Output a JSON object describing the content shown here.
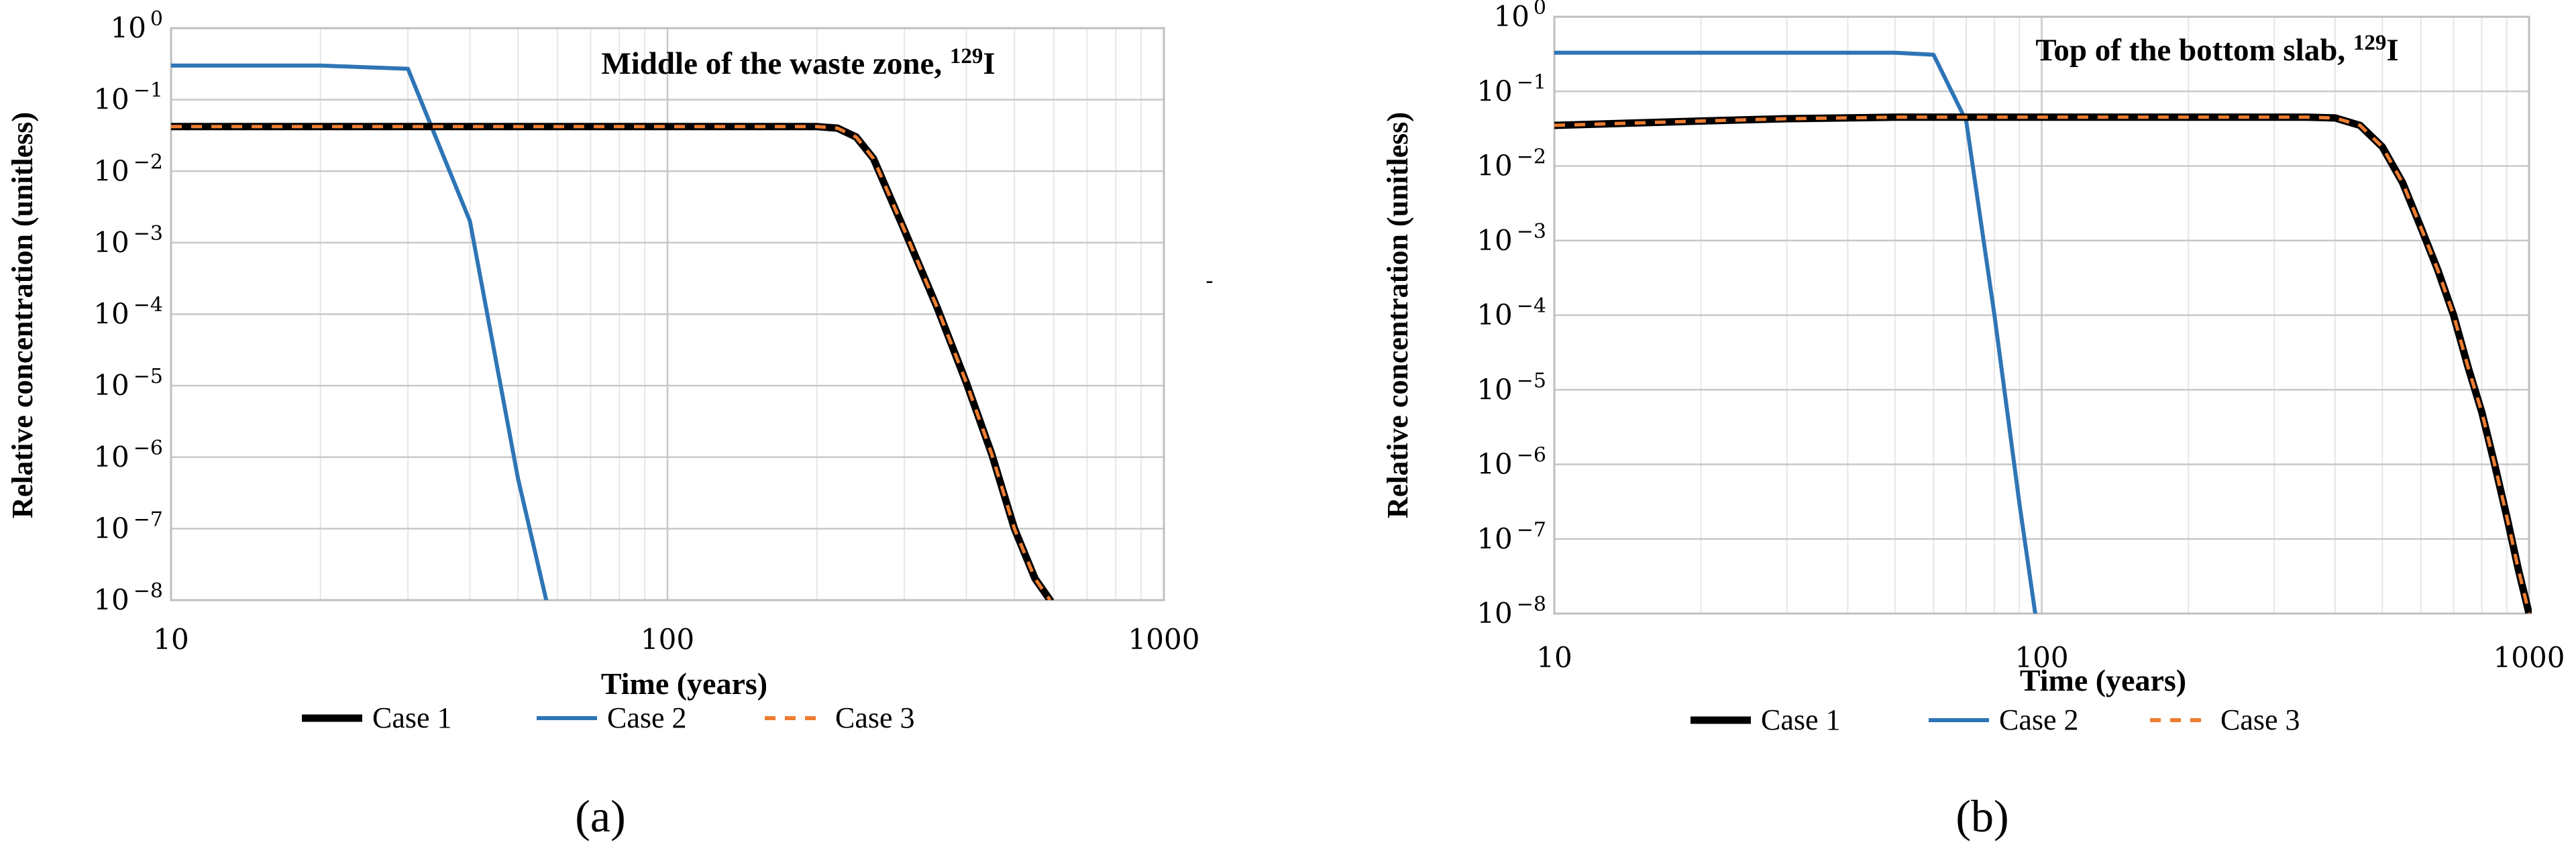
{
  "chart_data": [
    {
      "type": "line",
      "panel_label": "a",
      "title": "Middle of the waste zone, ",
      "title_superscript": "129",
      "title_suffix": "I",
      "xlabel": "Time (years)",
      "ylabel": "Relative concentration (unitless)",
      "xscale": "log",
      "yscale": "log",
      "xlim": [
        10,
        1000
      ],
      "ylim": [
        1e-08,
        1
      ],
      "grid": true,
      "legend_position": "bottom",
      "x_ticks": [
        10,
        100,
        1000
      ],
      "x_tick_labels": [
        "10",
        "100",
        "1000"
      ],
      "y_ticks": [
        1,
        0.1,
        0.01,
        0.001,
        0.0001,
        1e-05,
        1e-06,
        1e-07,
        1e-08
      ],
      "y_tick_base": "10",
      "y_tick_exponents": [
        "0",
        "−1",
        "−2",
        "−3",
        "−4",
        "−5",
        "−6",
        "−7",
        "−8"
      ],
      "series": [
        {
          "name": "Case 1",
          "color": "#000000",
          "style": "solid",
          "points": [
            [
              10,
              0.042
            ],
            [
              50,
              0.042
            ],
            [
              150,
              0.042
            ],
            [
              200,
              0.042
            ],
            [
              220,
              0.04
            ],
            [
              240,
              0.03
            ],
            [
              260,
              0.015
            ],
            [
              300,
              0.0015
            ],
            [
              350,
              0.00012
            ],
            [
              400,
              1.1e-05
            ],
            [
              450,
              1.1e-06
            ],
            [
              500,
              1e-07
            ],
            [
              550,
              2e-08
            ],
            [
              590,
              1e-08
            ]
          ]
        },
        {
          "name": "Case 2",
          "color": "#2e75b6",
          "style": "solid",
          "points": [
            [
              10,
              0.3
            ],
            [
              20,
              0.3
            ],
            [
              30,
              0.27
            ],
            [
              40,
              0.002
            ],
            [
              50,
              5e-07
            ],
            [
              57,
              1e-08
            ]
          ]
        },
        {
          "name": "Case 3",
          "color": "#ed7d31",
          "style": "dashed",
          "points": [
            [
              10,
              0.042
            ],
            [
              50,
              0.042
            ],
            [
              150,
              0.042
            ],
            [
              200,
              0.042
            ],
            [
              220,
              0.04
            ],
            [
              240,
              0.03
            ],
            [
              260,
              0.015
            ],
            [
              300,
              0.0015
            ],
            [
              350,
              0.00012
            ],
            [
              400,
              1.1e-05
            ],
            [
              450,
              1.1e-06
            ],
            [
              500,
              1e-07
            ],
            [
              550,
              2e-08
            ],
            [
              590,
              1e-08
            ]
          ]
        }
      ]
    },
    {
      "type": "line",
      "panel_label": "b",
      "title": "Top of the bottom slab, ",
      "title_superscript": "129",
      "title_suffix": "I",
      "xlabel": "Time (years)",
      "ylabel": "Relative concentration (unitless)",
      "xscale": "log",
      "yscale": "log",
      "xlim": [
        10,
        1000
      ],
      "ylim": [
        1e-08,
        1
      ],
      "grid": true,
      "legend_position": "bottom",
      "x_ticks": [
        10,
        100,
        1000
      ],
      "x_tick_labels": [
        "10",
        "100",
        "1000"
      ],
      "y_ticks": [
        1,
        0.1,
        0.01,
        0.001,
        0.0001,
        1e-05,
        1e-06,
        1e-07,
        1e-08
      ],
      "y_tick_base": "10",
      "y_tick_exponents": [
        "0",
        "−1",
        "−2",
        "−3",
        "−4",
        "−5",
        "−6",
        "−7",
        "−8"
      ],
      "series": [
        {
          "name": "Case 1",
          "color": "#000000",
          "style": "solid",
          "points": [
            [
              10,
              0.035
            ],
            [
              20,
              0.04
            ],
            [
              30,
              0.043
            ],
            [
              50,
              0.045
            ],
            [
              100,
              0.045
            ],
            [
              200,
              0.045
            ],
            [
              350,
              0.045
            ],
            [
              400,
              0.044
            ],
            [
              450,
              0.035
            ],
            [
              500,
              0.018
            ],
            [
              550,
              0.006
            ],
            [
              600,
              0.0015
            ],
            [
              650,
              0.0004
            ],
            [
              700,
              0.0001
            ],
            [
              750,
              2e-05
            ],
            [
              800,
              5e-06
            ],
            [
              850,
              1e-06
            ],
            [
              900,
              2e-07
            ],
            [
              950,
              4e-08
            ],
            [
              1000,
              1e-08
            ]
          ]
        },
        {
          "name": "Case 2",
          "color": "#2e75b6",
          "style": "solid",
          "points": [
            [
              10,
              0.33
            ],
            [
              30,
              0.33
            ],
            [
              50,
              0.33
            ],
            [
              60,
              0.31
            ],
            [
              70,
              0.04
            ],
            [
              80,
              0.0001
            ],
            [
              90,
              3e-07
            ],
            [
              97,
              1e-08
            ]
          ]
        },
        {
          "name": "Case 3",
          "color": "#ed7d31",
          "style": "dashed",
          "points": [
            [
              10,
              0.035
            ],
            [
              20,
              0.04
            ],
            [
              30,
              0.043
            ],
            [
              50,
              0.045
            ],
            [
              100,
              0.045
            ],
            [
              200,
              0.045
            ],
            [
              350,
              0.045
            ],
            [
              400,
              0.044
            ],
            [
              450,
              0.035
            ],
            [
              500,
              0.018
            ],
            [
              550,
              0.006
            ],
            [
              600,
              0.0015
            ],
            [
              650,
              0.0004
            ],
            [
              700,
              0.0001
            ],
            [
              750,
              2e-05
            ],
            [
              800,
              5e-06
            ],
            [
              850,
              1e-06
            ],
            [
              900,
              2e-07
            ],
            [
              950,
              4e-08
            ],
            [
              1000,
              1e-08
            ]
          ]
        }
      ]
    }
  ],
  "captions": [
    "(a)",
    "(b)"
  ],
  "stray_mark": "-"
}
